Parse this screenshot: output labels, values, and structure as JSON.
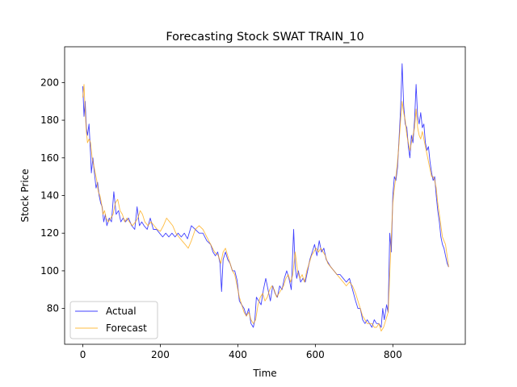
{
  "chart_data": {
    "type": "line",
    "title": "Forecasting Stock SWAT TRAIN_10",
    "xlabel": "Time",
    "ylabel": "Stock Price",
    "xlim": [
      -47,
      987
    ],
    "ylim": [
      61,
      219
    ],
    "x_ticks": [
      0,
      200,
      400,
      600,
      800
    ],
    "y_ticks": [
      80,
      100,
      120,
      140,
      160,
      180,
      200
    ],
    "grid": false,
    "legend_position": "lower-left",
    "series": [
      {
        "name": "Actual",
        "color": "#0000ff",
        "points": [
          [
            0,
            198
          ],
          [
            3,
            182
          ],
          [
            6,
            190
          ],
          [
            9,
            176
          ],
          [
            12,
            172
          ],
          [
            16,
            178
          ],
          [
            20,
            162
          ],
          [
            22,
            152
          ],
          [
            26,
            160
          ],
          [
            30,
            152
          ],
          [
            34,
            144
          ],
          [
            38,
            147
          ],
          [
            42,
            140
          ],
          [
            46,
            136
          ],
          [
            50,
            134
          ],
          [
            54,
            126
          ],
          [
            58,
            130
          ],
          [
            62,
            124
          ],
          [
            68,
            128
          ],
          [
            74,
            126
          ],
          [
            80,
            142
          ],
          [
            86,
            130
          ],
          [
            92,
            132
          ],
          [
            98,
            126
          ],
          [
            104,
            128
          ],
          [
            110,
            126
          ],
          [
            118,
            128
          ],
          [
            126,
            124
          ],
          [
            134,
            122
          ],
          [
            140,
            134
          ],
          [
            146,
            124
          ],
          [
            152,
            126
          ],
          [
            158,
            124
          ],
          [
            166,
            122
          ],
          [
            174,
            128
          ],
          [
            182,
            122
          ],
          [
            190,
            122
          ],
          [
            198,
            120
          ],
          [
            206,
            118
          ],
          [
            214,
            120
          ],
          [
            222,
            118
          ],
          [
            230,
            120
          ],
          [
            238,
            118
          ],
          [
            246,
            120
          ],
          [
            254,
            118
          ],
          [
            262,
            120
          ],
          [
            270,
            117
          ],
          [
            280,
            124
          ],
          [
            290,
            122
          ],
          [
            300,
            120
          ],
          [
            310,
            120
          ],
          [
            320,
            116
          ],
          [
            330,
            114
          ],
          [
            336,
            110
          ],
          [
            342,
            108
          ],
          [
            348,
            110
          ],
          [
            354,
            104
          ],
          [
            358,
            89
          ],
          [
            362,
            106
          ],
          [
            368,
            110
          ],
          [
            374,
            106
          ],
          [
            380,
            104
          ],
          [
            386,
            100
          ],
          [
            392,
            100
          ],
          [
            398,
            95
          ],
          [
            404,
            84
          ],
          [
            410,
            82
          ],
          [
            416,
            80
          ],
          [
            422,
            76
          ],
          [
            428,
            80
          ],
          [
            434,
            72
          ],
          [
            440,
            70
          ],
          [
            444,
            74
          ],
          [
            448,
            86
          ],
          [
            454,
            84
          ],
          [
            460,
            82
          ],
          [
            466,
            90
          ],
          [
            472,
            96
          ],
          [
            478,
            90
          ],
          [
            484,
            84
          ],
          [
            490,
            92
          ],
          [
            496,
            88
          ],
          [
            502,
            86
          ],
          [
            508,
            92
          ],
          [
            514,
            90
          ],
          [
            520,
            96
          ],
          [
            526,
            100
          ],
          [
            532,
            96
          ],
          [
            538,
            90
          ],
          [
            544,
            122
          ],
          [
            548,
            102
          ],
          [
            552,
            96
          ],
          [
            556,
            100
          ],
          [
            562,
            94
          ],
          [
            568,
            96
          ],
          [
            574,
            94
          ],
          [
            580,
            100
          ],
          [
            586,
            106
          ],
          [
            592,
            110
          ],
          [
            598,
            114
          ],
          [
            604,
            108
          ],
          [
            610,
            116
          ],
          [
            616,
            110
          ],
          [
            622,
            112
          ],
          [
            628,
            106
          ],
          [
            634,
            104
          ],
          [
            640,
            102
          ],
          [
            648,
            100
          ],
          [
            656,
            98
          ],
          [
            664,
            98
          ],
          [
            672,
            96
          ],
          [
            680,
            94
          ],
          [
            688,
            96
          ],
          [
            696,
            90
          ],
          [
            704,
            84
          ],
          [
            710,
            80
          ],
          [
            716,
            80
          ],
          [
            722,
            74
          ],
          [
            728,
            72
          ],
          [
            734,
            74
          ],
          [
            740,
            72
          ],
          [
            746,
            70
          ],
          [
            752,
            74
          ],
          [
            758,
            72
          ],
          [
            764,
            72
          ],
          [
            770,
            70
          ],
          [
            774,
            80
          ],
          [
            778,
            74
          ],
          [
            784,
            82
          ],
          [
            788,
            78
          ],
          [
            792,
            120
          ],
          [
            796,
            110
          ],
          [
            800,
            140
          ],
          [
            804,
            150
          ],
          [
            808,
            148
          ],
          [
            812,
            155
          ],
          [
            816,
            170
          ],
          [
            820,
            186
          ],
          [
            824,
            210
          ],
          [
            828,
            188
          ],
          [
            832,
            178
          ],
          [
            836,
            176
          ],
          [
            840,
            166
          ],
          [
            844,
            160
          ],
          [
            848,
            172
          ],
          [
            852,
            168
          ],
          [
            856,
            180
          ],
          [
            860,
            199
          ],
          [
            864,
            182
          ],
          [
            868,
            178
          ],
          [
            872,
            184
          ],
          [
            876,
            176
          ],
          [
            880,
            178
          ],
          [
            884,
            168
          ],
          [
            888,
            164
          ],
          [
            892,
            166
          ],
          [
            896,
            158
          ],
          [
            900,
            152
          ],
          [
            904,
            148
          ],
          [
            908,
            150
          ],
          [
            912,
            140
          ],
          [
            916,
            132
          ],
          [
            920,
            126
          ],
          [
            924,
            118
          ],
          [
            928,
            114
          ],
          [
            932,
            112
          ],
          [
            936,
            108
          ],
          [
            940,
            104
          ],
          [
            944,
            102
          ]
        ]
      },
      {
        "name": "Forecast",
        "color": "#ffa500",
        "points": [
          [
            0,
            192
          ],
          [
            3,
            199
          ],
          [
            6,
            185
          ],
          [
            9,
            174
          ],
          [
            12,
            168
          ],
          [
            16,
            170
          ],
          [
            20,
            168
          ],
          [
            24,
            160
          ],
          [
            28,
            156
          ],
          [
            32,
            152
          ],
          [
            36,
            148
          ],
          [
            40,
            142
          ],
          [
            44,
            140
          ],
          [
            48,
            136
          ],
          [
            52,
            130
          ],
          [
            56,
            132
          ],
          [
            60,
            128
          ],
          [
            66,
            126
          ],
          [
            72,
            128
          ],
          [
            78,
            130
          ],
          [
            84,
            136
          ],
          [
            90,
            138
          ],
          [
            96,
            132
          ],
          [
            102,
            130
          ],
          [
            108,
            126
          ],
          [
            114,
            128
          ],
          [
            120,
            126
          ],
          [
            128,
            124
          ],
          [
            136,
            126
          ],
          [
            142,
            128
          ],
          [
            148,
            132
          ],
          [
            154,
            130
          ],
          [
            160,
            126
          ],
          [
            168,
            124
          ],
          [
            176,
            126
          ],
          [
            184,
            124
          ],
          [
            192,
            122
          ],
          [
            200,
            121
          ],
          [
            208,
            124
          ],
          [
            216,
            128
          ],
          [
            224,
            126
          ],
          [
            232,
            124
          ],
          [
            240,
            120
          ],
          [
            248,
            118
          ],
          [
            256,
            116
          ],
          [
            264,
            114
          ],
          [
            272,
            112
          ],
          [
            280,
            116
          ],
          [
            290,
            122
          ],
          [
            300,
            124
          ],
          [
            310,
            122
          ],
          [
            320,
            118
          ],
          [
            330,
            114
          ],
          [
            340,
            110
          ],
          [
            350,
            108
          ],
          [
            356,
            104
          ],
          [
            362,
            110
          ],
          [
            368,
            112
          ],
          [
            374,
            108
          ],
          [
            380,
            104
          ],
          [
            386,
            100
          ],
          [
            392,
            98
          ],
          [
            398,
            92
          ],
          [
            404,
            86
          ],
          [
            410,
            82
          ],
          [
            416,
            78
          ],
          [
            422,
            76
          ],
          [
            428,
            78
          ],
          [
            434,
            74
          ],
          [
            440,
            72
          ],
          [
            446,
            74
          ],
          [
            452,
            82
          ],
          [
            458,
            86
          ],
          [
            464,
            88
          ],
          [
            470,
            84
          ],
          [
            476,
            86
          ],
          [
            482,
            90
          ],
          [
            488,
            92
          ],
          [
            494,
            90
          ],
          [
            500,
            86
          ],
          [
            506,
            88
          ],
          [
            512,
            90
          ],
          [
            518,
            92
          ],
          [
            524,
            96
          ],
          [
            530,
            98
          ],
          [
            536,
            94
          ],
          [
            542,
            98
          ],
          [
            548,
            110
          ],
          [
            554,
            100
          ],
          [
            560,
            96
          ],
          [
            566,
            98
          ],
          [
            572,
            94
          ],
          [
            578,
            100
          ],
          [
            584,
            104
          ],
          [
            590,
            108
          ],
          [
            596,
            110
          ],
          [
            602,
            112
          ],
          [
            608,
            110
          ],
          [
            614,
            112
          ],
          [
            620,
            110
          ],
          [
            626,
            108
          ],
          [
            632,
            104
          ],
          [
            640,
            102
          ],
          [
            648,
            100
          ],
          [
            656,
            98
          ],
          [
            664,
            96
          ],
          [
            672,
            94
          ],
          [
            680,
            92
          ],
          [
            688,
            94
          ],
          [
            696,
            92
          ],
          [
            704,
            88
          ],
          [
            710,
            84
          ],
          [
            716,
            80
          ],
          [
            722,
            76
          ],
          [
            728,
            74
          ],
          [
            734,
            72
          ],
          [
            740,
            72
          ],
          [
            746,
            72
          ],
          [
            752,
            70
          ],
          [
            758,
            70
          ],
          [
            764,
            72
          ],
          [
            770,
            68
          ],
          [
            776,
            70
          ],
          [
            782,
            74
          ],
          [
            788,
            78
          ],
          [
            792,
            98
          ],
          [
            796,
            118
          ],
          [
            800,
            136
          ],
          [
            804,
            144
          ],
          [
            808,
            150
          ],
          [
            812,
            158
          ],
          [
            816,
            168
          ],
          [
            820,
            180
          ],
          [
            824,
            190
          ],
          [
            828,
            184
          ],
          [
            832,
            180
          ],
          [
            836,
            172
          ],
          [
            840,
            168
          ],
          [
            844,
            164
          ],
          [
            848,
            168
          ],
          [
            852,
            172
          ],
          [
            856,
            176
          ],
          [
            860,
            186
          ],
          [
            864,
            176
          ],
          [
            868,
            172
          ],
          [
            872,
            170
          ],
          [
            876,
            174
          ],
          [
            880,
            170
          ],
          [
            884,
            166
          ],
          [
            888,
            162
          ],
          [
            892,
            158
          ],
          [
            896,
            154
          ],
          [
            900,
            150
          ],
          [
            904,
            150
          ],
          [
            908,
            148
          ],
          [
            912,
            144
          ],
          [
            916,
            136
          ],
          [
            920,
            130
          ],
          [
            924,
            124
          ],
          [
            928,
            118
          ],
          [
            932,
            116
          ],
          [
            936,
            114
          ],
          [
            940,
            108
          ],
          [
            944,
            102
          ]
        ]
      }
    ]
  }
}
